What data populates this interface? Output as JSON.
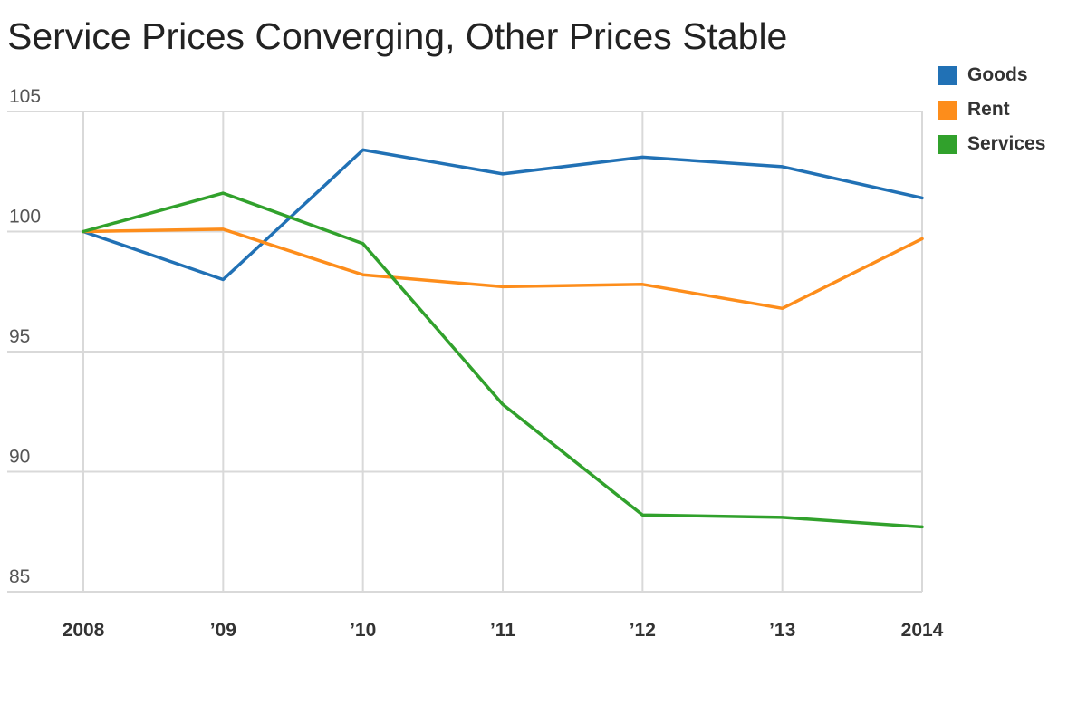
{
  "chart_data": {
    "type": "line",
    "title": "Service Prices Converging, Other Prices Stable",
    "categories": [
      "2008",
      "’09",
      "’10",
      "’11",
      "’12",
      "’13",
      "2014"
    ],
    "ylim": [
      85,
      105
    ],
    "yticks": [
      105,
      100,
      95,
      90,
      85
    ],
    "grid": true,
    "legend_position": "top-right",
    "series": [
      {
        "name": "Goods",
        "color": "#2171b5",
        "values": [
          100.0,
          98.0,
          103.4,
          102.4,
          103.1,
          102.7,
          101.4
        ]
      },
      {
        "name": "Rent",
        "color": "#fd8d1b",
        "values": [
          100.0,
          100.1,
          98.2,
          97.7,
          97.8,
          96.8,
          99.7
        ]
      },
      {
        "name": "Services",
        "color": "#31a12c",
        "values": [
          100.0,
          101.6,
          99.5,
          92.8,
          88.2,
          88.1,
          87.7
        ]
      }
    ]
  }
}
